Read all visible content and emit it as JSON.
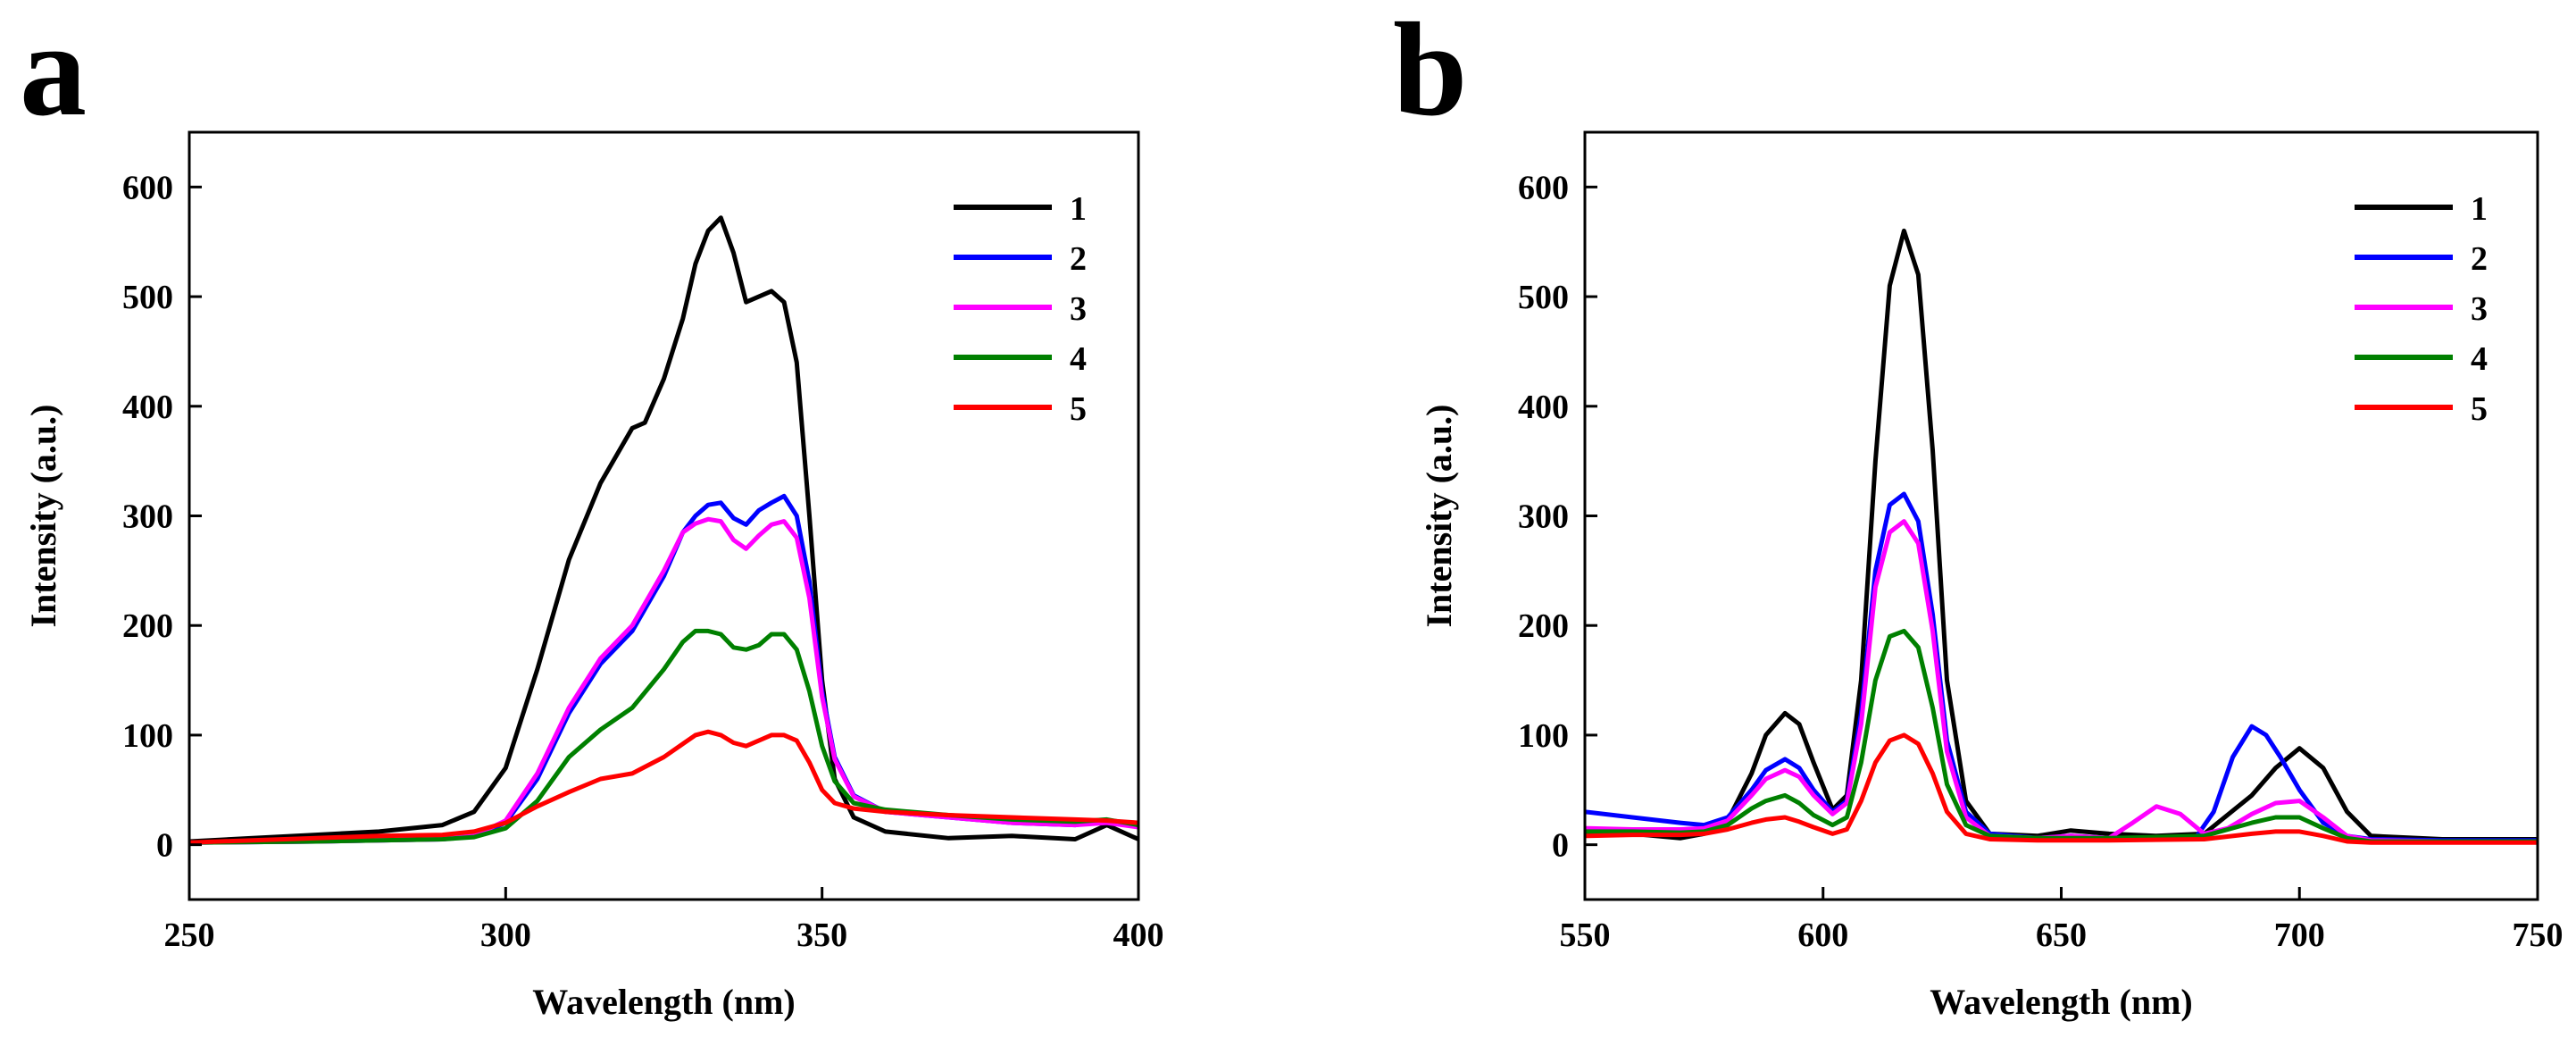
{
  "chart_data": [
    {
      "panel_label": "a",
      "type": "line",
      "xlabel": "Wavelength (nm)",
      "ylabel": "Intensity (a.u.)",
      "xlim": [
        250,
        400
      ],
      "ylim": [
        -50,
        650
      ],
      "xticks": [
        250,
        300,
        350,
        400
      ],
      "yticks": [
        0,
        100,
        200,
        300,
        400,
        500,
        600
      ],
      "legend_position": "top-right",
      "series": [
        {
          "name": "1",
          "color": "#000000",
          "x": [
            250,
            260,
            270,
            280,
            290,
            295,
            300,
            305,
            310,
            315,
            320,
            322,
            325,
            328,
            330,
            332,
            334,
            336,
            338,
            340,
            342,
            344,
            346,
            348,
            350,
            352,
            355,
            360,
            370,
            380,
            390,
            395,
            400
          ],
          "y": [
            3,
            6,
            9,
            12,
            18,
            30,
            70,
            160,
            260,
            330,
            380,
            385,
            425,
            480,
            530,
            560,
            572,
            540,
            495,
            500,
            505,
            495,
            440,
            300,
            150,
            60,
            25,
            12,
            6,
            8,
            5,
            18,
            5
          ]
        },
        {
          "name": "2",
          "color": "#0000ff",
          "x": [
            250,
            270,
            290,
            295,
            300,
            305,
            310,
            315,
            320,
            325,
            328,
            330,
            332,
            334,
            336,
            338,
            340,
            342,
            344,
            346,
            348,
            350,
            352,
            355,
            360,
            370,
            380,
            390,
            395,
            400
          ],
          "y": [
            2,
            3,
            5,
            8,
            20,
            60,
            120,
            165,
            195,
            245,
            285,
            300,
            310,
            312,
            298,
            292,
            305,
            312,
            318,
            300,
            240,
            140,
            80,
            45,
            30,
            25,
            20,
            18,
            22,
            18
          ]
        },
        {
          "name": "3",
          "color": "#ff00ff",
          "x": [
            250,
            270,
            290,
            295,
            300,
            305,
            310,
            315,
            320,
            325,
            328,
            330,
            332,
            334,
            336,
            338,
            340,
            342,
            344,
            346,
            348,
            350,
            352,
            355,
            360,
            370,
            380,
            390,
            395,
            400
          ],
          "y": [
            2,
            3,
            5,
            8,
            22,
            65,
            125,
            170,
            200,
            250,
            285,
            293,
            297,
            295,
            278,
            270,
            282,
            292,
            295,
            280,
            225,
            135,
            78,
            44,
            30,
            25,
            20,
            18,
            20,
            16
          ]
        },
        {
          "name": "4",
          "color": "#008000",
          "x": [
            250,
            270,
            290,
            295,
            300,
            305,
            310,
            315,
            320,
            325,
            328,
            330,
            332,
            334,
            336,
            338,
            340,
            342,
            344,
            346,
            348,
            350,
            352,
            355,
            360,
            370,
            380,
            390,
            395,
            400
          ],
          "y": [
            2,
            3,
            5,
            7,
            15,
            40,
            80,
            105,
            125,
            160,
            185,
            195,
            195,
            192,
            180,
            178,
            182,
            192,
            192,
            178,
            140,
            90,
            58,
            38,
            32,
            27,
            23,
            21,
            23,
            18
          ]
        },
        {
          "name": "5",
          "color": "#ff0000",
          "x": [
            250,
            260,
            270,
            280,
            290,
            295,
            300,
            305,
            310,
            315,
            320,
            325,
            328,
            330,
            332,
            334,
            336,
            338,
            340,
            342,
            344,
            346,
            348,
            350,
            352,
            355,
            360,
            370,
            380,
            390,
            395,
            400
          ],
          "y": [
            2,
            4,
            6,
            8,
            9,
            12,
            20,
            35,
            48,
            60,
            65,
            80,
            92,
            100,
            103,
            100,
            93,
            90,
            95,
            100,
            100,
            95,
            75,
            50,
            38,
            33,
            30,
            27,
            25,
            23,
            22,
            20
          ]
        }
      ]
    },
    {
      "panel_label": "b",
      "type": "line",
      "xlabel": "Wavelength (nm)",
      "ylabel": "Intensity (a.u.)",
      "xlim": [
        550,
        750
      ],
      "ylim": [
        -50,
        650
      ],
      "xticks": [
        550,
        600,
        650,
        700,
        750
      ],
      "yticks": [
        0,
        100,
        200,
        300,
        400,
        500,
        600
      ],
      "legend_position": "top-right",
      "series": [
        {
          "name": "1",
          "color": "#000000",
          "x": [
            550,
            560,
            570,
            575,
            580,
            585,
            588,
            592,
            595,
            598,
            602,
            605,
            608,
            611,
            614,
            617,
            620,
            623,
            626,
            630,
            635,
            645,
            652,
            660,
            670,
            680,
            690,
            695,
            700,
            705,
            710,
            715,
            730,
            750
          ],
          "y": [
            12,
            10,
            6,
            10,
            22,
            65,
            100,
            120,
            110,
            75,
            32,
            45,
            150,
            350,
            510,
            560,
            520,
            360,
            150,
            40,
            10,
            8,
            13,
            10,
            8,
            10,
            45,
            70,
            88,
            70,
            30,
            8,
            5,
            5
          ]
        },
        {
          "name": "2",
          "color": "#0000ff",
          "x": [
            550,
            560,
            570,
            575,
            580,
            585,
            588,
            592,
            595,
            598,
            602,
            605,
            608,
            611,
            614,
            617,
            620,
            623,
            626,
            630,
            635,
            645,
            652,
            660,
            670,
            678,
            682,
            686,
            690,
            693,
            696,
            700,
            705,
            710,
            715,
            730,
            750
          ],
          "y": [
            30,
            25,
            20,
            18,
            25,
            50,
            68,
            78,
            70,
            50,
            30,
            40,
            120,
            250,
            310,
            320,
            295,
            210,
            95,
            30,
            10,
            6,
            8,
            6,
            5,
            5,
            30,
            80,
            108,
            100,
            80,
            50,
            20,
            8,
            5,
            4,
            4
          ]
        },
        {
          "name": "3",
          "color": "#ff00ff",
          "x": [
            550,
            560,
            570,
            575,
            580,
            585,
            588,
            592,
            595,
            598,
            602,
            605,
            608,
            611,
            614,
            617,
            620,
            623,
            626,
            630,
            635,
            645,
            652,
            660,
            665,
            670,
            675,
            680,
            685,
            690,
            695,
            700,
            705,
            710,
            715,
            730,
            750
          ],
          "y": [
            15,
            14,
            14,
            15,
            22,
            45,
            60,
            68,
            62,
            45,
            28,
            38,
            110,
            235,
            285,
            295,
            275,
            195,
            85,
            25,
            8,
            6,
            8,
            6,
            20,
            35,
            28,
            10,
            15,
            28,
            38,
            40,
            25,
            8,
            4,
            3,
            3
          ]
        },
        {
          "name": "4",
          "color": "#008000",
          "x": [
            550,
            560,
            570,
            575,
            580,
            585,
            588,
            592,
            595,
            598,
            602,
            605,
            608,
            611,
            614,
            617,
            620,
            623,
            626,
            630,
            635,
            645,
            660,
            680,
            690,
            695,
            700,
            705,
            710,
            715,
            730,
            750
          ],
          "y": [
            12,
            12,
            11,
            12,
            18,
            33,
            40,
            45,
            38,
            27,
            18,
            25,
            75,
            150,
            190,
            195,
            180,
            125,
            55,
            18,
            8,
            6,
            6,
            8,
            20,
            25,
            25,
            15,
            6,
            3,
            3,
            3
          ]
        },
        {
          "name": "5",
          "color": "#ff0000",
          "x": [
            550,
            560,
            570,
            575,
            580,
            585,
            588,
            592,
            595,
            598,
            602,
            605,
            608,
            611,
            614,
            617,
            620,
            623,
            626,
            630,
            635,
            645,
            660,
            680,
            690,
            695,
            700,
            705,
            710,
            715,
            730,
            750
          ],
          "y": [
            8,
            9,
            9,
            10,
            14,
            20,
            23,
            25,
            21,
            16,
            10,
            14,
            40,
            75,
            95,
            100,
            92,
            65,
            30,
            10,
            5,
            4,
            4,
            5,
            10,
            12,
            12,
            8,
            3,
            2,
            2,
            2
          ]
        }
      ]
    }
  ]
}
